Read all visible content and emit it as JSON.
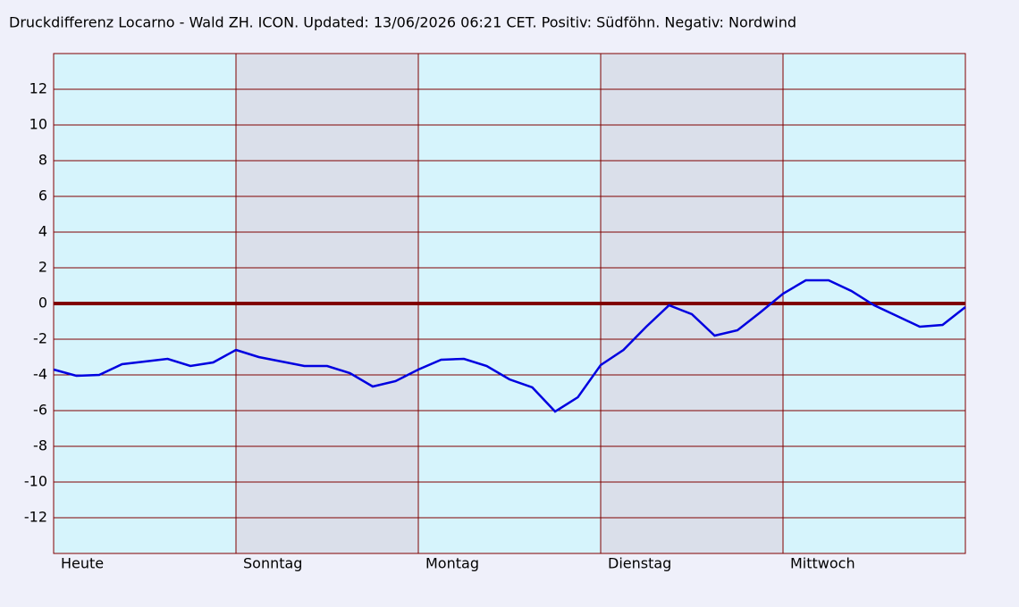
{
  "chart_data": {
    "type": "line",
    "title": "Druckdifferenz Locarno - Wald ZH. ICON. Updated: 13/06/2026 06:21 CET. Positiv: Südföhn. Negativ: Nordwind",
    "x": [
      0,
      3,
      6,
      9,
      12,
      15,
      18,
      21,
      24,
      27,
      30,
      33,
      36,
      39,
      42,
      45,
      48,
      51,
      54,
      57,
      60,
      63,
      66,
      69,
      72,
      75,
      78,
      81,
      84,
      87,
      90,
      93,
      96,
      99,
      102,
      105,
      108,
      111,
      114,
      117,
      120
    ],
    "series": [
      {
        "name": "Druckdifferenz",
        "color": "#0000e0",
        "values": [
          -3.7,
          -4.05,
          -4.0,
          -3.4,
          -3.25,
          -3.1,
          -3.5,
          -3.3,
          -2.6,
          -3.0,
          -3.25,
          -3.5,
          -3.5,
          -3.9,
          -4.65,
          -4.35,
          -3.7,
          -3.15,
          -3.1,
          -3.5,
          -4.25,
          -4.7,
          -6.05,
          -5.25,
          -3.45,
          -2.6,
          -1.3,
          -0.1,
          -0.6,
          -1.8,
          -1.5,
          -0.5,
          0.55,
          1.3,
          1.3,
          0.7,
          -0.1,
          -0.7,
          -1.3,
          -1.2,
          -0.2
        ]
      }
    ],
    "xlim": [
      0,
      120
    ],
    "xticks": [
      {
        "value": 0,
        "label": "Heute"
      },
      {
        "value": 24,
        "label": "Sonntag"
      },
      {
        "value": 48,
        "label": "Montag"
      },
      {
        "value": 72,
        "label": "Dienstag"
      },
      {
        "value": 96,
        "label": "Mittwoch"
      }
    ],
    "ylim": [
      -14,
      14
    ],
    "yticks": [
      -12,
      -10,
      -8,
      -6,
      -4,
      -2,
      0,
      2,
      4,
      6,
      8,
      10,
      12
    ],
    "grid": true,
    "band_colors": [
      "#d6f4fc",
      "#dadfea"
    ],
    "grid_color": "#800000"
  }
}
